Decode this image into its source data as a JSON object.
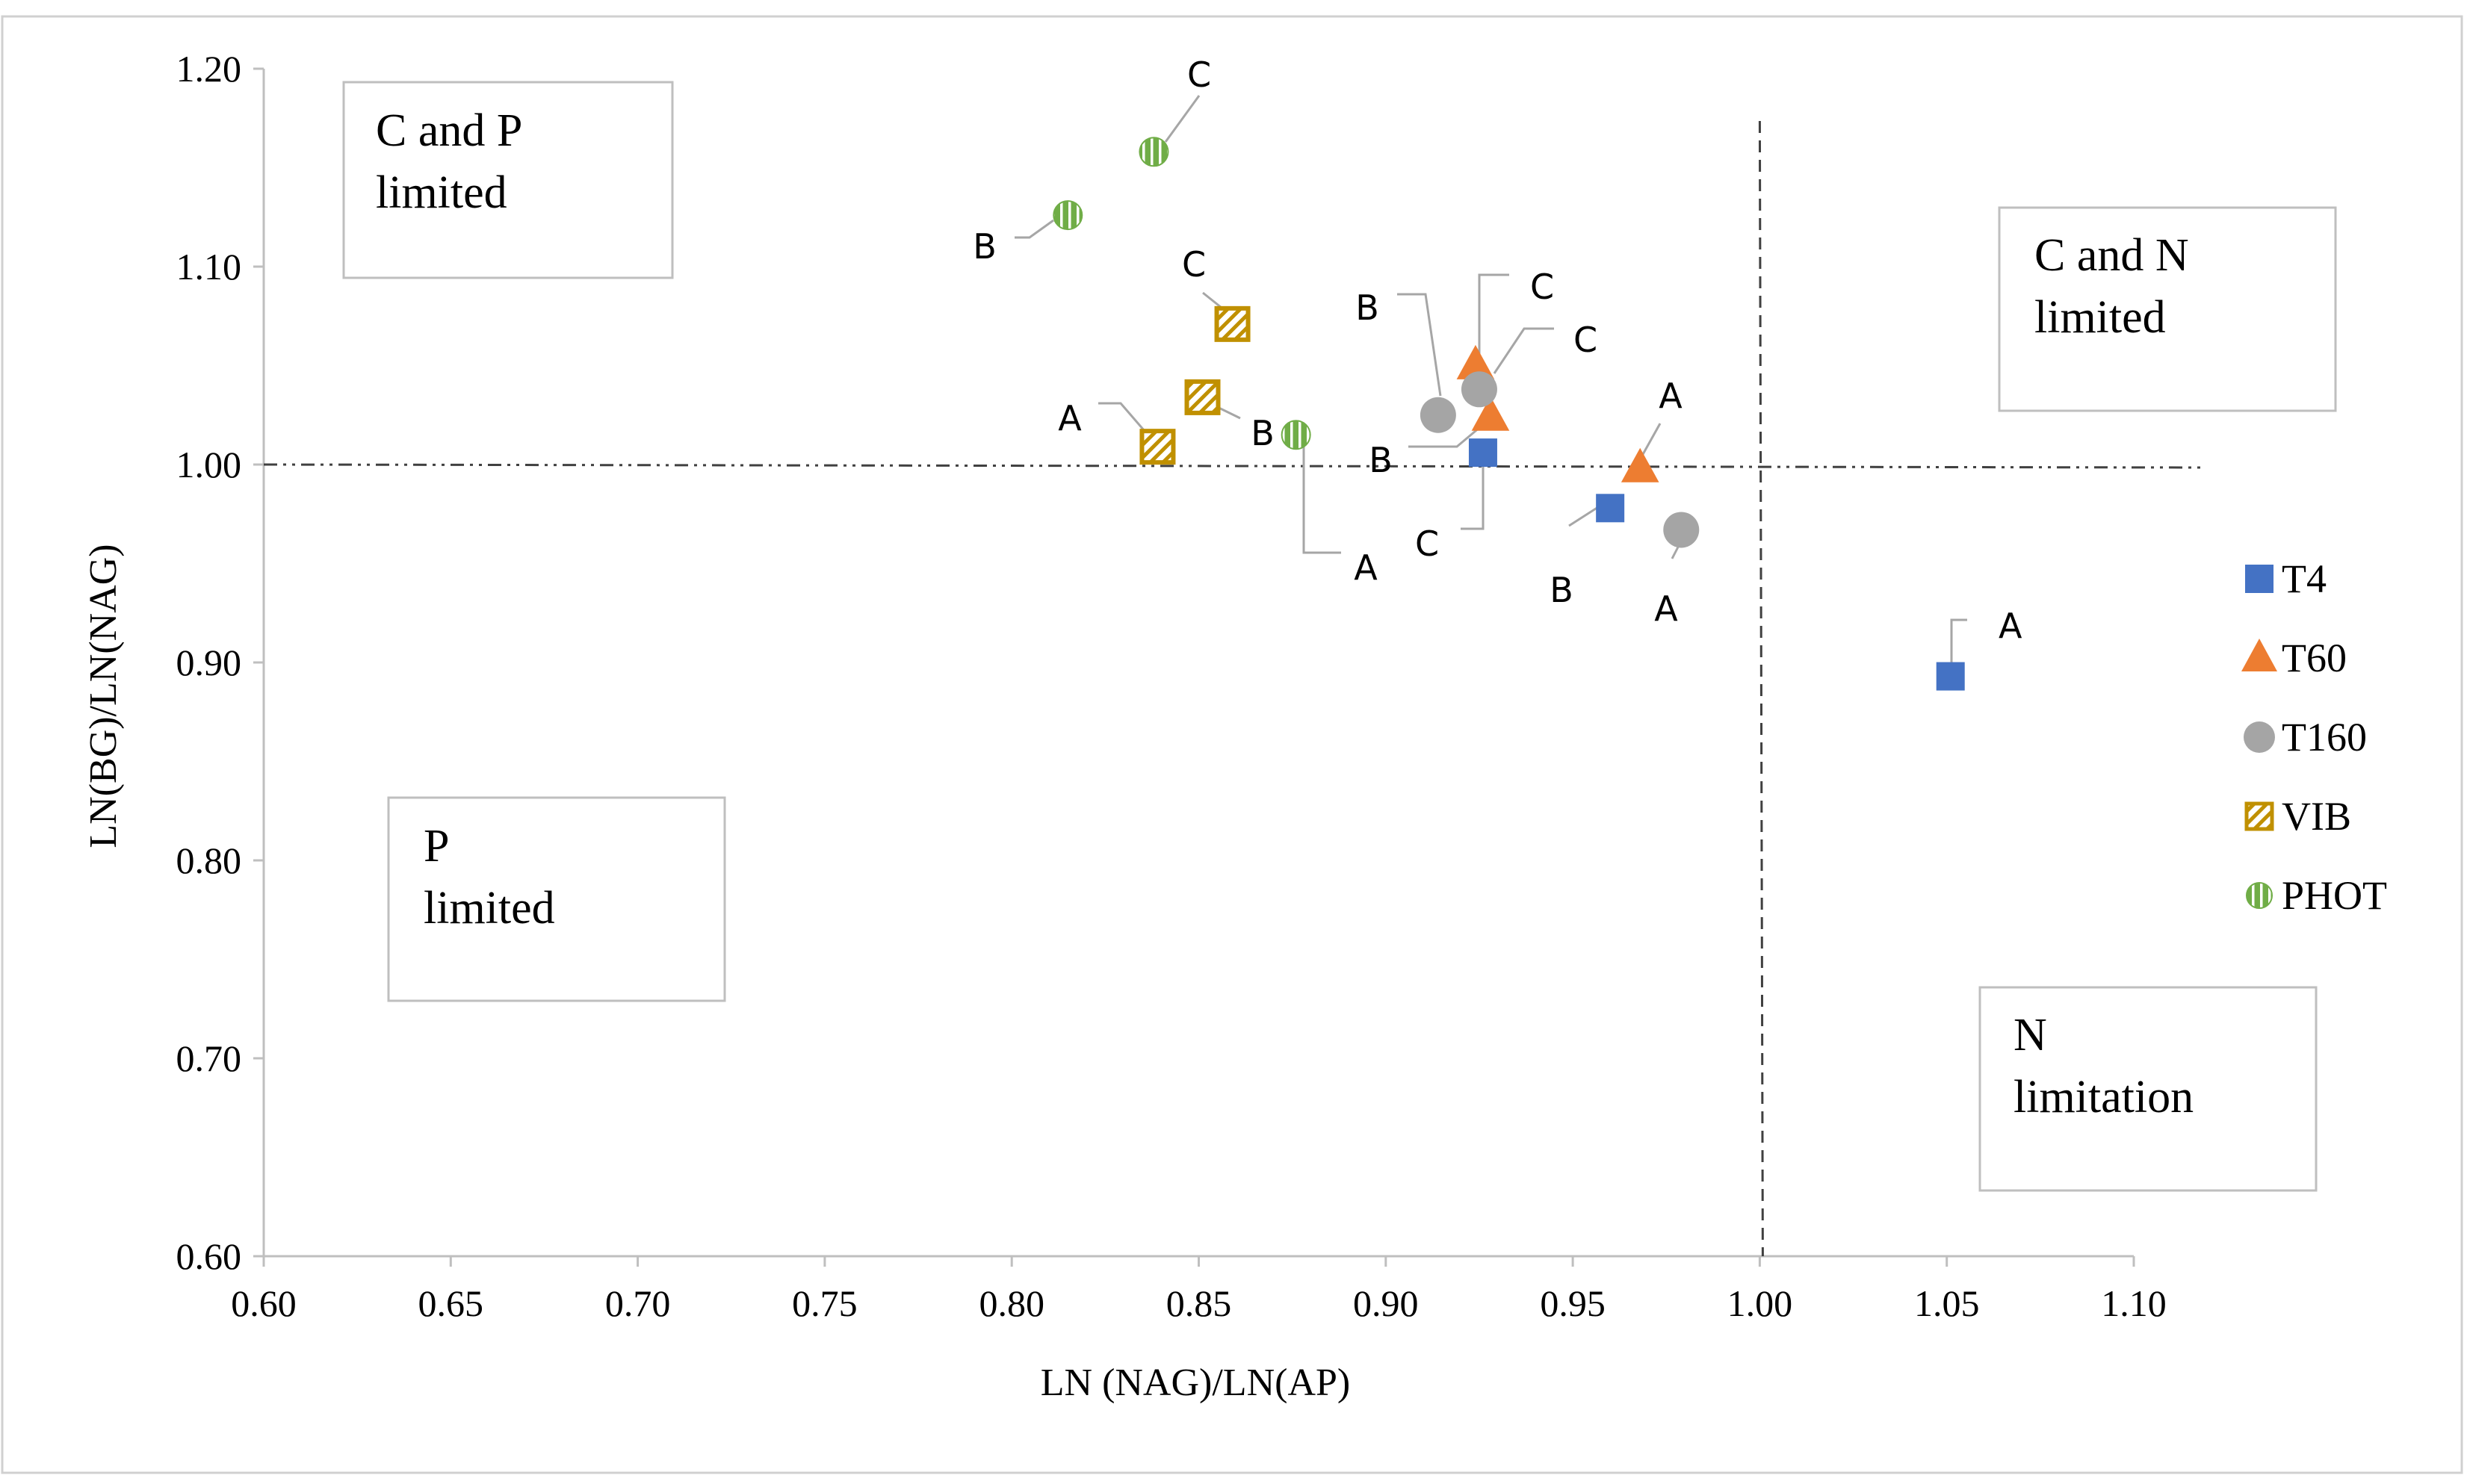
{
  "chart_data": {
    "type": "scatter",
    "xlabel": "LN (NAG)/LN(AP)",
    "ylabel": "LN(BG)/LN(NAG)",
    "xlim": [
      0.6,
      1.1
    ],
    "ylim": [
      0.6,
      1.2
    ],
    "x_ticks": [
      "0.60",
      "0.65",
      "0.70",
      "0.75",
      "0.80",
      "0.85",
      "0.90",
      "0.95",
      "1.00",
      "1.05",
      "1.10"
    ],
    "y_ticks": [
      "0.60",
      "0.70",
      "0.80",
      "0.90",
      "1.00",
      "1.10",
      "1.20"
    ],
    "grid": false,
    "legend_position": "right",
    "colors": {
      "T4": "#4472C4",
      "T60": "#ED7D31",
      "T160": "#A5A5A5",
      "VIB": "#C09000",
      "PHOT": "#70AD47"
    },
    "series": [
      {
        "name": "T4",
        "marker": "square",
        "points": [
          {
            "x": 1.051,
            "y": 0.893,
            "label": "A"
          },
          {
            "x": 0.96,
            "y": 0.978,
            "label": "B"
          },
          {
            "x": 0.926,
            "y": 1.006,
            "label": "C"
          }
        ]
      },
      {
        "name": "T60",
        "marker": "triangle",
        "points": [
          {
            "x": 0.968,
            "y": 0.998,
            "label": "A"
          },
          {
            "x": 0.928,
            "y": 1.024,
            "label": "B"
          },
          {
            "x": 0.924,
            "y": 1.05,
            "label": "C"
          }
        ]
      },
      {
        "name": "T160",
        "marker": "circle",
        "points": [
          {
            "x": 0.979,
            "y": 0.967,
            "label": "A"
          },
          {
            "x": 0.914,
            "y": 1.025,
            "label": "B"
          },
          {
            "x": 0.925,
            "y": 1.038,
            "label": "C"
          }
        ]
      },
      {
        "name": "VIB",
        "marker": "hatched-square",
        "points": [
          {
            "x": 0.839,
            "y": 1.009,
            "label": "A"
          },
          {
            "x": 0.851,
            "y": 1.034,
            "label": "B"
          },
          {
            "x": 0.859,
            "y": 1.071,
            "label": "C"
          }
        ]
      },
      {
        "name": "PHOT",
        "marker": "striped-circle",
        "points": [
          {
            "x": 0.876,
            "y": 1.015,
            "label": "A"
          },
          {
            "x": 0.815,
            "y": 1.126,
            "label": "B"
          },
          {
            "x": 0.838,
            "y": 1.158,
            "label": "C"
          }
        ]
      }
    ],
    "reference_lines": [
      {
        "orientation": "horizontal",
        "value": 1.0,
        "style": "dash-dot"
      },
      {
        "orientation": "vertical",
        "value": 1.0,
        "style": "dashed"
      }
    ],
    "region_annotations": [
      {
        "line1": "C and P",
        "line2": "limited"
      },
      {
        "line1": "C and N",
        "line2": "limited"
      },
      {
        "line1": "P",
        "line2": "limited"
      },
      {
        "line1": "N",
        "line2": "limitation"
      }
    ]
  }
}
